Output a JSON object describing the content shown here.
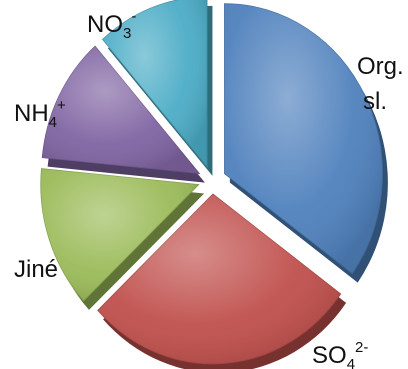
{
  "chart_data": {
    "type": "pie",
    "style": "3d-exploded",
    "slices": [
      {
        "key": "org",
        "label_lines": [
          "Org.",
          "sl."
        ],
        "value": 35,
        "color": "#4F81BD"
      },
      {
        "key": "so4",
        "base": "SO",
        "sub": "4",
        "sup": "2-",
        "value": 28,
        "color": "#C0504D"
      },
      {
        "key": "jine",
        "label": "Jiné",
        "value": 13.5,
        "color": "#9BBB59"
      },
      {
        "key": "nh4",
        "base": "NH",
        "sub": "4",
        "sup": "+",
        "value": 12,
        "color": "#8064A2"
      },
      {
        "key": "no3",
        "base": "NO",
        "sub": "3",
        "sup": "-",
        "value": 11.5,
        "color": "#4BACC6"
      }
    ],
    "legend": "none"
  }
}
